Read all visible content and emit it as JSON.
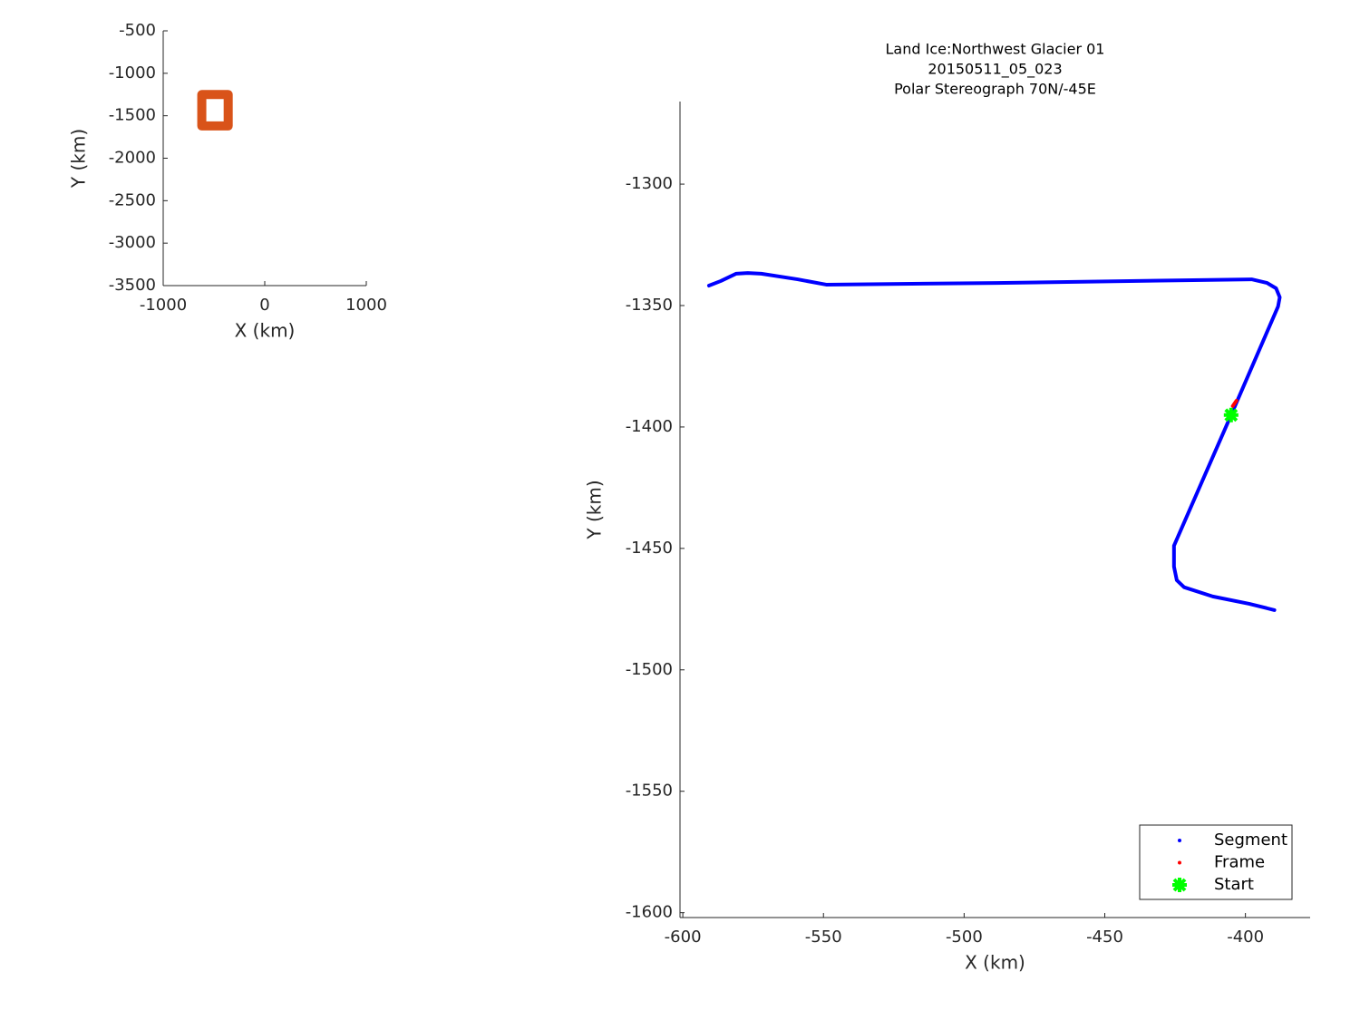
{
  "chart_data": [
    {
      "type": "line",
      "xlabel": "X (km)",
      "ylabel": "Y (km)",
      "xlim": [
        -1000,
        1000
      ],
      "ylim": [
        -3500,
        -500
      ],
      "xticks": [
        -1000,
        0,
        1000
      ],
      "yticks": [
        -500,
        -1000,
        -1500,
        -2000,
        -2500,
        -3000,
        -3500
      ],
      "series": [
        {
          "color": "#d95319",
          "marker": ".",
          "x": [
            -620,
            -360,
            -360,
            -620,
            -620
          ],
          "values": [
            -1250,
            -1250,
            -1620,
            -1620,
            -1250
          ]
        }
      ]
    },
    {
      "type": "line",
      "title": [
        "Land Ice:Northwest Glacier 01",
        "20150511_05_023",
        "Polar Stereograph 70N/-45E"
      ],
      "xlabel": "X (km)",
      "ylabel": "Y (km)",
      "xlim": [
        -601,
        -377
      ],
      "ylim": [
        -1602,
        -1266
      ],
      "xticks": [
        -600,
        -550,
        -500,
        -450,
        -400
      ],
      "yticks": [
        -1600,
        -1550,
        -1500,
        -1450,
        -1400,
        -1350,
        -1300
      ],
      "legend": "southeast",
      "series": [
        {
          "name": "Segment",
          "color": "#0000ff",
          "marker": ".",
          "x": [
            -590.7,
            -586.5,
            -581.1,
            -576.9,
            -572.1,
            -559.2,
            -549.0,
            -488.6,
            -397.8,
            -392.3,
            -389.1,
            -387.8,
            -388.4,
            -405.1,
            -425.4,
            -425.4,
            -424.4,
            -421.8,
            -411.6,
            -398.7,
            -389.7
          ],
          "values": [
            -1341.8,
            -1339.9,
            -1336.9,
            -1336.6,
            -1336.9,
            -1339.2,
            -1341.4,
            -1340.7,
            -1339.2,
            -1340.7,
            -1342.9,
            -1346.6,
            -1350.4,
            -1395.1,
            -1448.9,
            -1457.5,
            -1463.1,
            -1466.0,
            -1469.8,
            -1472.8,
            -1475.4
          ]
        },
        {
          "name": "Frame",
          "color": "#ff0000",
          "marker": ".",
          "x": [
            -404.5,
            -403.2
          ],
          "values": [
            -1391.4,
            -1389.2
          ]
        },
        {
          "name": "Start",
          "color": "#00ff00",
          "marker": "*",
          "x": [
            -405.1
          ],
          "values": [
            -1395.1
          ]
        }
      ]
    }
  ]
}
